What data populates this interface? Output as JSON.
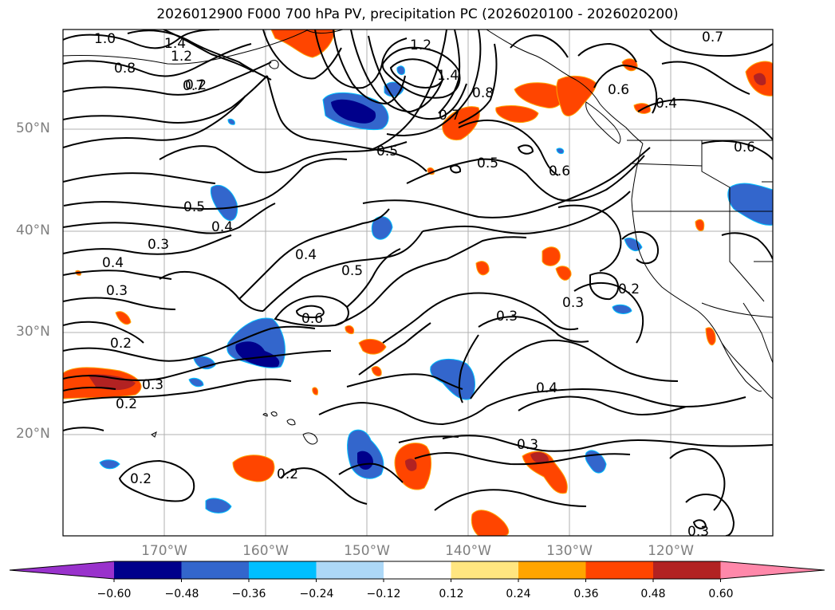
{
  "title": "2026012900 F000 700 hPa PV, precipitation PC (2026020100 - 2026020200)",
  "map": {
    "lat_labels": [
      "50°N",
      "40°N",
      "30°N",
      "20°N"
    ],
    "lon_labels": [
      "170°W",
      "160°W",
      "150°W",
      "140°W",
      "130°W",
      "120°W"
    ],
    "contour_labels": [
      "1.0",
      "1.4",
      "1.2",
      "0.8",
      "0.7",
      "1.2",
      "1.4",
      "0.7",
      "0.8",
      "0.6",
      "0.4",
      "0.7",
      "0.5",
      "0.5",
      "0.6",
      "0.6",
      "0.5",
      "0.4",
      "0.3",
      "0.4",
      "0.3",
      "0.4",
      "0.5",
      "0.6",
      "0.2",
      "0.3",
      "0.2",
      "0.3",
      "0.3",
      "0.2",
      "0.4",
      "0.3",
      "0.2",
      "0.2",
      "0.3",
      "0.2"
    ]
  },
  "colorbar": {
    "ticks": [
      "−0.60",
      "−0.48",
      "−0.36",
      "−0.24",
      "−0.12",
      "0.12",
      "0.24",
      "0.36",
      "0.48",
      "0.60"
    ],
    "colors": [
      "#9932cc",
      "#00008b",
      "#3366cc",
      "#00bfff",
      "#add8f7",
      "#ffffff",
      "#ffe680",
      "#ffa500",
      "#ff4500",
      "#b22222",
      "#ff88aa"
    ]
  }
}
